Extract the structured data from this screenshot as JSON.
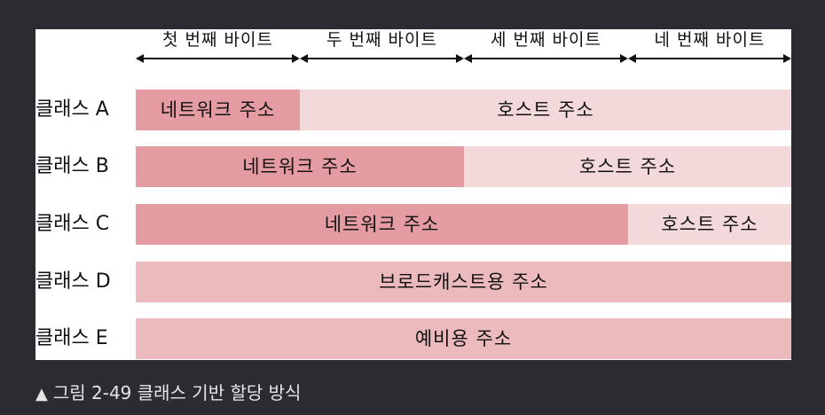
{
  "byte_headers": [
    "첫 번째 바이트",
    "두 번째 바이트",
    "세 번째 바이트",
    "네 번째 바이트"
  ],
  "rows": [
    {
      "label": "클래스 A",
      "network": "네트워크 주소",
      "host": "호스트 주소",
      "network_bytes": 1
    },
    {
      "label": "클래스 B",
      "network": "네트워크 주소",
      "host": "호스트 주소",
      "network_bytes": 2
    },
    {
      "label": "클래스 C",
      "network": "네트워크 주소",
      "host": "호스트 주소",
      "network_bytes": 3
    },
    {
      "label": "클래스 D",
      "full": "브로드캐스트용 주소"
    },
    {
      "label": "클래스 E",
      "full": "예비용 주소"
    }
  ],
  "caption": {
    "icon": "triangle-up-icon",
    "text": "그림 2-49 클래스 기반 할당 방식"
  },
  "colors": {
    "network": "#e49ca2",
    "host": "#f4d9db",
    "full": "#ecb9bd",
    "page_bg": "#2a2c32"
  }
}
